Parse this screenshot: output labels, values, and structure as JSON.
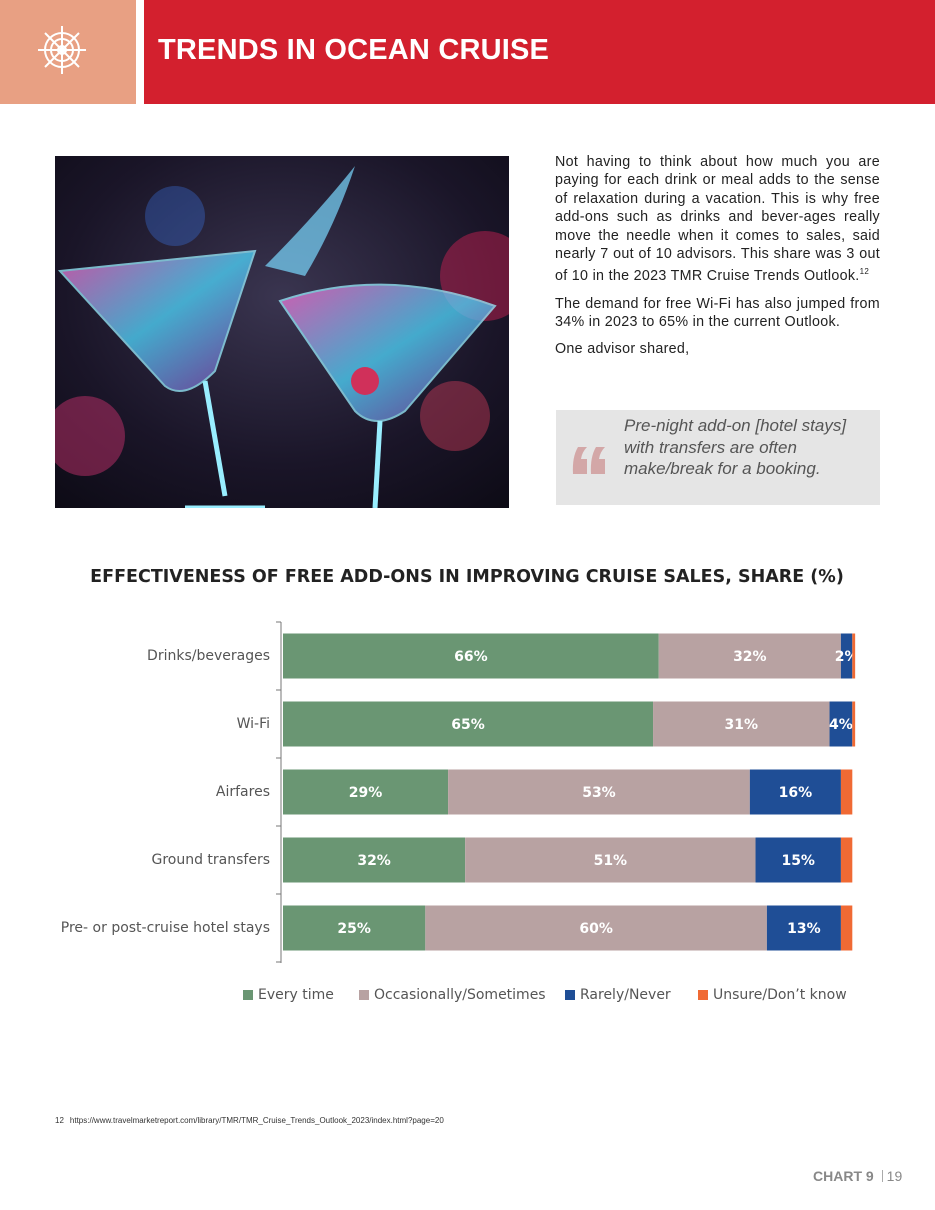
{
  "header": {
    "title": "TRENDS IN OCEAN CRUISE"
  },
  "body": {
    "paragraphs": [
      {
        "text": "Not having to think about how much you are paying for each drink or meal adds to the sense of relaxation during a vacation. This is why free add-ons such as drinks and bever-ages really move the needle when it comes to sales, said nearly 7 out of 10 advisors. This share was 3 out of 10 in the 2023 TMR Cruise Trends Outlook.",
        "ref": "12"
      },
      {
        "text": "The demand for free Wi-Fi has also jumped from 34% in 2023 to 65% in the current Outlook."
      },
      {
        "text": "One advisor shared,"
      }
    ],
    "quote": "Pre-night add-on [hotel stays] with transfers are often make/break for a booking."
  },
  "chart_data": {
    "type": "stacked-barh",
    "title": "EFFECTIVENESS OF FREE ADD-ONS IN IMPROVING CRUISE SALES, SHARE (%)",
    "categories": [
      "Drinks/beverages",
      "Wi-Fi",
      "Airfares",
      "Ground transfers",
      "Pre- or post-cruise hotel stays"
    ],
    "xlim": [
      0,
      101
    ],
    "series": [
      {
        "name": "Every time",
        "color": "#6a9673",
        "values": [
          66,
          65,
          29,
          32,
          25
        ],
        "value_labels": [
          "66%",
          "65%",
          "29%",
          "32%",
          "25%"
        ]
      },
      {
        "name": "Occasionally/Sometimes",
        "color": "#b8a2a2",
        "values": [
          32,
          31,
          53,
          51,
          60
        ],
        "value_labels": [
          "32%",
          "31%",
          "53%",
          "51%",
          "60%"
        ]
      },
      {
        "name": "Rarely/Never",
        "color": "#1f4e96",
        "values": [
          2,
          4,
          16,
          15,
          13
        ],
        "value_labels": [
          "2%",
          "4%",
          "16%",
          "15%",
          "13%"
        ]
      },
      {
        "name": "Unsure/Don’t know",
        "color": "#f06a34",
        "values": [
          0.5,
          0.5,
          2,
          2,
          2
        ]
      }
    ],
    "legend": "bottom"
  },
  "footnote": {
    "number": "12",
    "text": "https://www.travelmarketreport.com/library/TMR/TMR_Cruise_Trends_Outlook_2023/index.html?page=20"
  },
  "footer": {
    "label": "CHART 9",
    "page": "19"
  }
}
